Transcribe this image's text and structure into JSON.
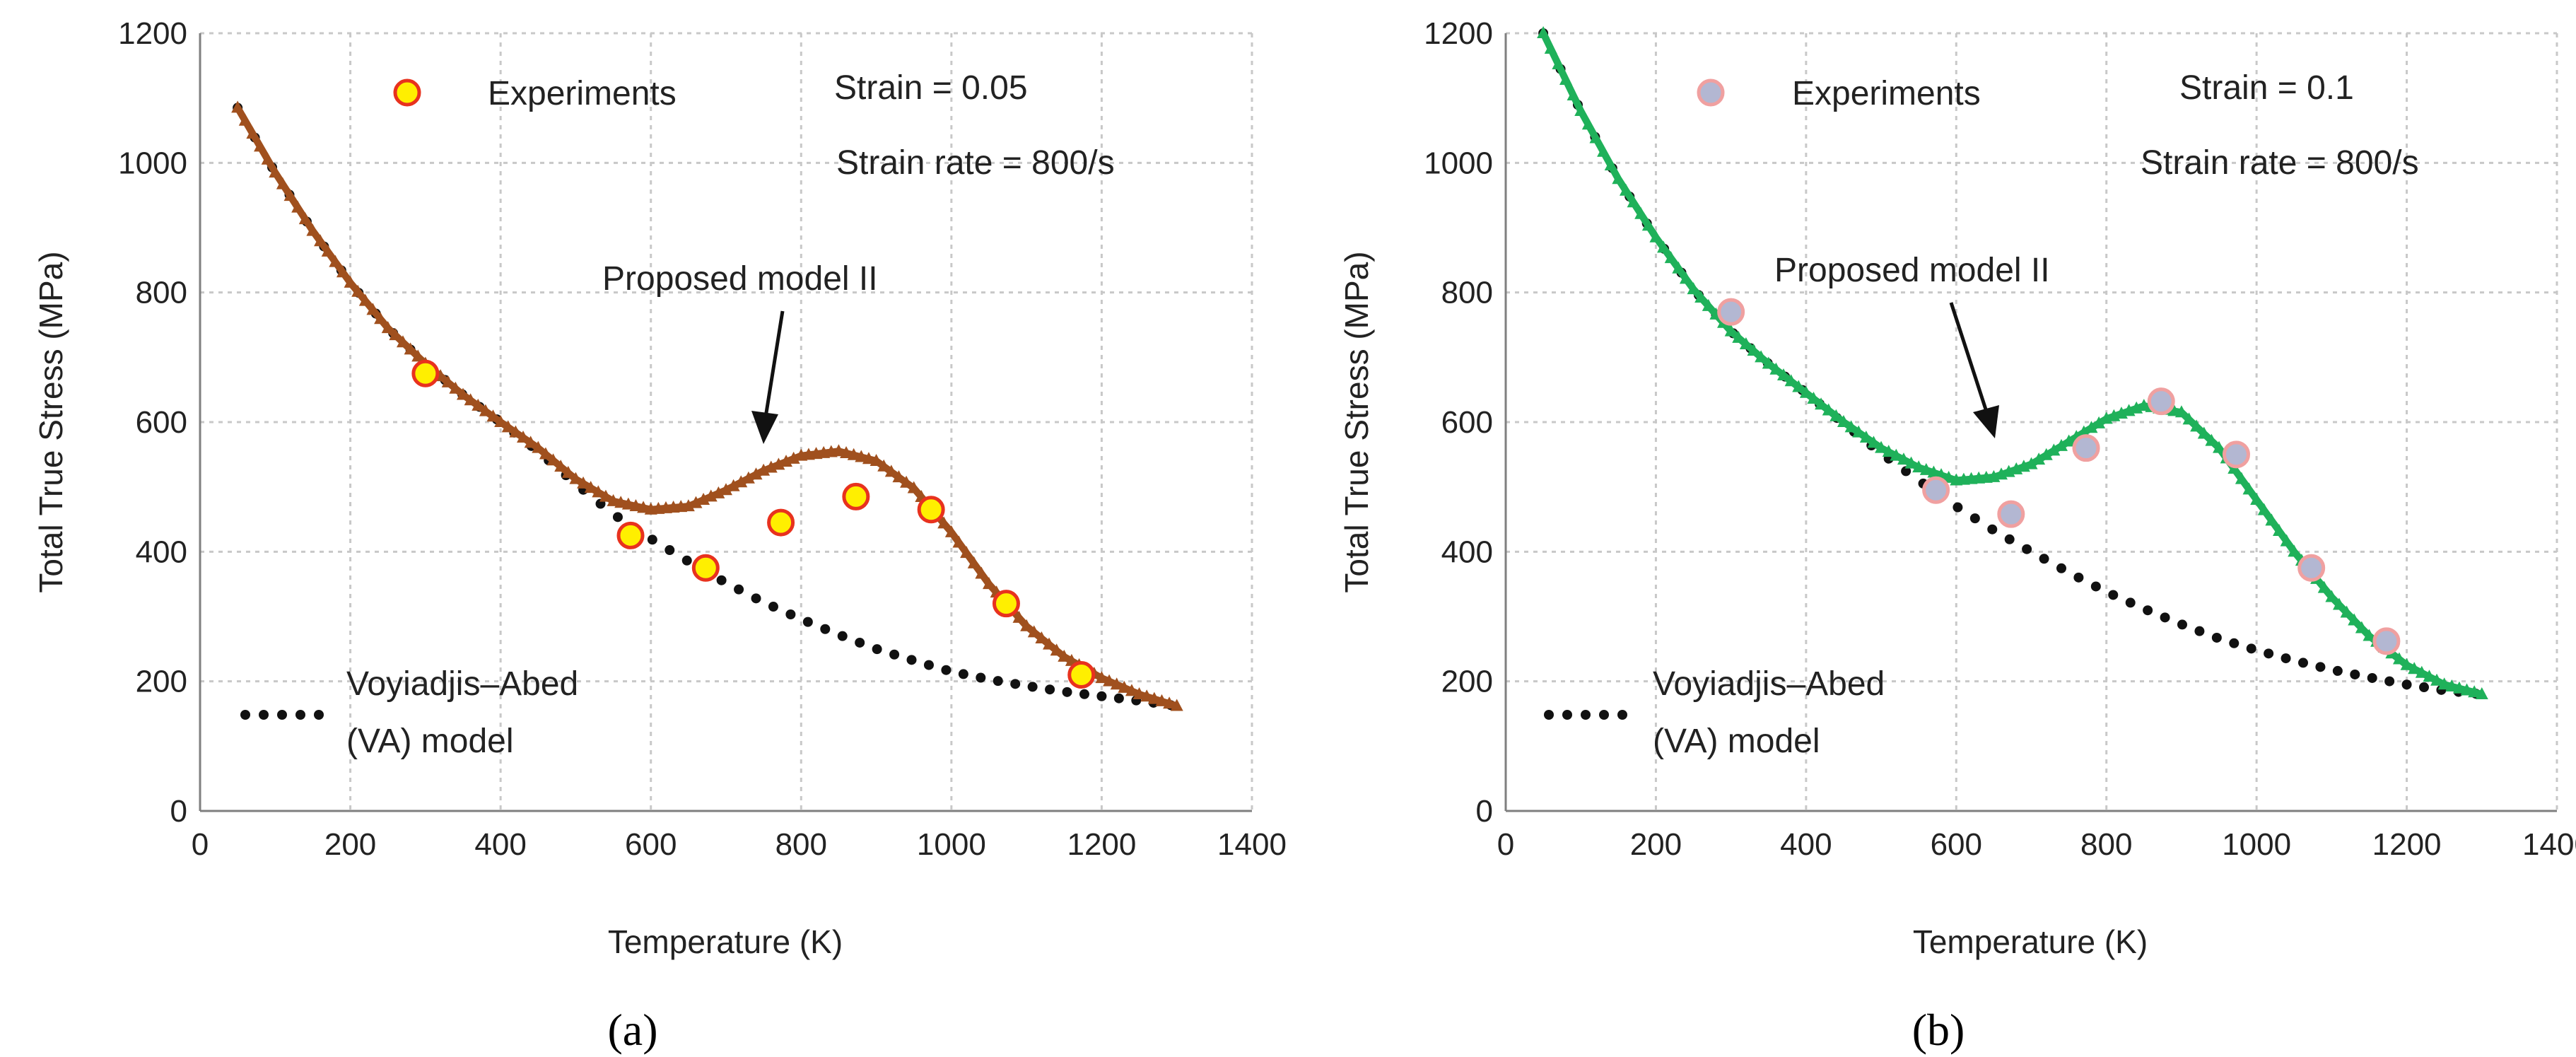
{
  "chart_data": [
    {
      "type": "line",
      "panel_label": "(a)",
      "xlabel": "Temperature (K)",
      "ylabel": "Total True Stress (MPa)",
      "xlim": [
        0,
        1400
      ],
      "ylim": [
        0,
        1200
      ],
      "x_ticks": [
        0,
        200,
        400,
        600,
        800,
        1000,
        1200,
        1400
      ],
      "y_ticks": [
        0,
        200,
        400,
        600,
        800,
        1000,
        1200
      ],
      "grid": true,
      "strain_text": "Strain = 0.05",
      "rate_text": "Strain rate = 800/s",
      "experiments_label": "Experiments",
      "model_label": "Proposed model II",
      "va_label_line1": "Voyiadjis–Abed",
      "va_label_line2": "(VA) model",
      "colors": {
        "model": "#a0501e",
        "exp_fill": "#ffef00",
        "exp_edge": "#e8321e",
        "va": "#111111"
      },
      "series": [
        {
          "name": "Experiments",
          "kind": "scatter",
          "x": [
            300,
            573,
            673,
            773,
            873,
            973,
            1073,
            1173
          ],
          "y": [
            675,
            425,
            375,
            445,
            485,
            465,
            320,
            210
          ]
        },
        {
          "name": "Proposed model II",
          "kind": "line-triangles",
          "x": [
            50,
            100,
            150,
            200,
            250,
            300,
            350,
            400,
            450,
            500,
            550,
            600,
            650,
            700,
            750,
            800,
            850,
            900,
            950,
            1000,
            1050,
            1100,
            1150,
            1200,
            1250,
            1300
          ],
          "y": [
            1085,
            985,
            895,
            815,
            745,
            690,
            642,
            600,
            560,
            512,
            478,
            465,
            470,
            495,
            525,
            548,
            555,
            540,
            498,
            430,
            350,
            285,
            238,
            205,
            180,
            162
          ]
        },
        {
          "name": "Voyiadjis–Abed (VA) model",
          "kind": "dotted",
          "x": [
            50,
            100,
            150,
            200,
            250,
            300,
            350,
            400,
            450,
            500,
            550,
            600,
            650,
            700,
            750,
            800,
            850,
            900,
            950,
            1000,
            1050,
            1100,
            1150,
            1200,
            1250,
            1300
          ],
          "y": [
            1085,
            985,
            895,
            815,
            745,
            690,
            642,
            600,
            555,
            505,
            458,
            420,
            385,
            352,
            322,
            296,
            272,
            250,
            232,
            215,
            203,
            193,
            184,
            177,
            170,
            162
          ]
        }
      ]
    },
    {
      "type": "line",
      "panel_label": "(b)",
      "xlabel": "Temperature (K)",
      "ylabel": "Total True Stress (MPa)",
      "xlim": [
        0,
        1400
      ],
      "ylim": [
        0,
        1200
      ],
      "x_ticks": [
        0,
        200,
        400,
        600,
        800,
        1000,
        1200,
        1400
      ],
      "y_ticks": [
        0,
        200,
        400,
        600,
        800,
        1000,
        1200
      ],
      "grid": true,
      "strain_text": "Strain = 0.1",
      "rate_text": "Strain rate = 800/s",
      "experiments_label": "Experiments",
      "model_label": "Proposed model II",
      "va_label_line1": "Voyiadjis–Abed",
      "va_label_line2": "(VA) model",
      "colors": {
        "model": "#1fb15a",
        "exp_fill": "#b3b7d2",
        "exp_edge": "#f0a0a0",
        "va": "#111111"
      },
      "series": [
        {
          "name": "Experiments",
          "kind": "scatter",
          "x": [
            300,
            573,
            673,
            773,
            873,
            973,
            1073,
            1173
          ],
          "y": [
            770,
            495,
            458,
            560,
            632,
            550,
            375,
            262
          ]
        },
        {
          "name": "Proposed model II",
          "kind": "line-triangles",
          "x": [
            50,
            100,
            150,
            200,
            250,
            300,
            350,
            400,
            450,
            500,
            550,
            600,
            650,
            700,
            750,
            800,
            850,
            900,
            950,
            1000,
            1050,
            1100,
            1150,
            1200,
            1250,
            1300
          ],
          "y": [
            1200,
            1080,
            975,
            885,
            805,
            740,
            690,
            645,
            600,
            560,
            530,
            510,
            515,
            535,
            570,
            605,
            625,
            615,
            560,
            480,
            400,
            330,
            270,
            225,
            195,
            180
          ]
        },
        {
          "name": "Voyiadjis–Abed (VA) model",
          "kind": "dotted",
          "x": [
            50,
            100,
            150,
            200,
            250,
            300,
            350,
            400,
            450,
            500,
            550,
            600,
            650,
            700,
            750,
            800,
            850,
            900,
            950,
            1000,
            1050,
            1100,
            1150,
            1200,
            1250,
            1300
          ],
          "y": [
            1200,
            1080,
            975,
            885,
            805,
            740,
            690,
            645,
            598,
            552,
            510,
            470,
            433,
            400,
            368,
            338,
            312,
            288,
            266,
            248,
            232,
            218,
            206,
            195,
            186,
            180
          ]
        }
      ]
    }
  ]
}
